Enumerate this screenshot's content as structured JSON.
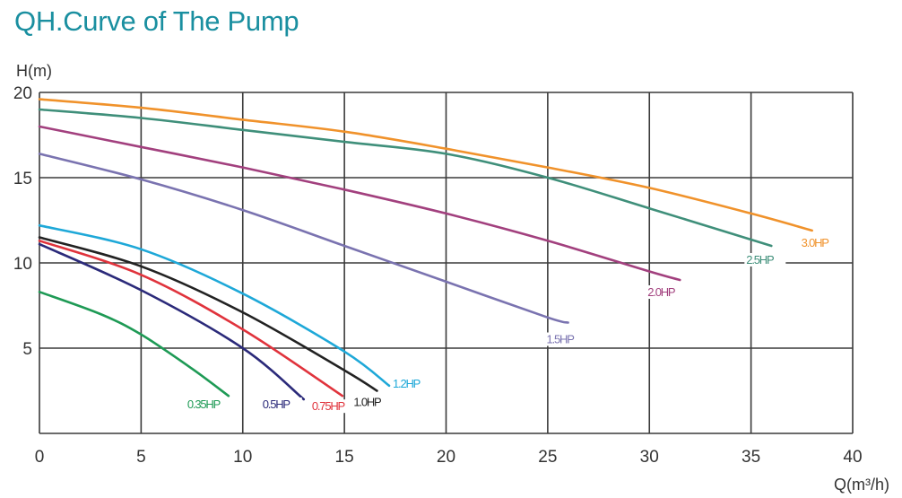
{
  "page_title": "QH.Curve of The Pump",
  "chart_data": {
    "type": "line",
    "title": "QH.Curve of The Pump",
    "xlabel": "Q(m³/h)",
    "ylabel": "H(m)",
    "xlim": [
      0,
      40
    ],
    "ylim": [
      0,
      20
    ],
    "x_ticks": [
      "0",
      "5",
      "10",
      "15",
      "20",
      "25",
      "30",
      "35",
      "40"
    ],
    "y_ticks": [
      "5",
      "10",
      "15",
      "20"
    ],
    "grid": true,
    "series": [
      {
        "name": "3.0HP",
        "color": "#f0922b",
        "points": [
          [
            0,
            19.6
          ],
          [
            5,
            19.1
          ],
          [
            10,
            18.4
          ],
          [
            15,
            17.7
          ],
          [
            20,
            16.7
          ],
          [
            25,
            15.6
          ],
          [
            30,
            14.4
          ],
          [
            35,
            12.9
          ],
          [
            38,
            11.9
          ]
        ]
      },
      {
        "name": "2.5HP",
        "color": "#3f8f7a",
        "points": [
          [
            0,
            19.0
          ],
          [
            5,
            18.5
          ],
          [
            10,
            17.8
          ],
          [
            15,
            17.1
          ],
          [
            20,
            16.4
          ],
          [
            25,
            15.0
          ],
          [
            30,
            13.2
          ],
          [
            36,
            11.0
          ]
        ]
      },
      {
        "name": "2.0HP",
        "color": "#a2407e",
        "points": [
          [
            0,
            18.0
          ],
          [
            5,
            16.8
          ],
          [
            10,
            15.6
          ],
          [
            15,
            14.3
          ],
          [
            20,
            12.9
          ],
          [
            25,
            11.3
          ],
          [
            30,
            9.5
          ],
          [
            31.5,
            9.0
          ]
        ]
      },
      {
        "name": "1.5HP",
        "color": "#7a73b0",
        "points": [
          [
            0,
            16.4
          ],
          [
            5,
            14.9
          ],
          [
            10,
            13.1
          ],
          [
            15,
            11.0
          ],
          [
            20,
            8.9
          ],
          [
            25,
            6.8
          ],
          [
            26,
            6.5
          ]
        ]
      },
      {
        "name": "1.2HP",
        "color": "#1ea8d8",
        "points": [
          [
            0,
            12.2
          ],
          [
            5,
            10.8
          ],
          [
            10,
            8.2
          ],
          [
            15,
            4.8
          ],
          [
            17.2,
            2.8
          ]
        ]
      },
      {
        "name": "1.0HP",
        "color": "#222222",
        "points": [
          [
            0,
            11.5
          ],
          [
            5,
            9.8
          ],
          [
            10,
            7.1
          ],
          [
            15,
            3.7
          ],
          [
            16.6,
            2.5
          ]
        ]
      },
      {
        "name": "0.75HP",
        "color": "#e0333c",
        "points": [
          [
            0,
            11.3
          ],
          [
            5,
            9.3
          ],
          [
            10,
            6.1
          ],
          [
            14.9,
            2.2
          ]
        ]
      },
      {
        "name": "0.5HP",
        "color": "#2b2a7a",
        "points": [
          [
            0,
            11.1
          ],
          [
            5,
            8.4
          ],
          [
            10,
            5.0
          ],
          [
            13,
            2.0
          ]
        ]
      },
      {
        "name": "0.35HP",
        "color": "#1e9a55",
        "points": [
          [
            0,
            8.3
          ],
          [
            3,
            7.0
          ],
          [
            5,
            5.8
          ],
          [
            7.5,
            3.8
          ],
          [
            9.3,
            2.2
          ]
        ]
      }
    ]
  }
}
